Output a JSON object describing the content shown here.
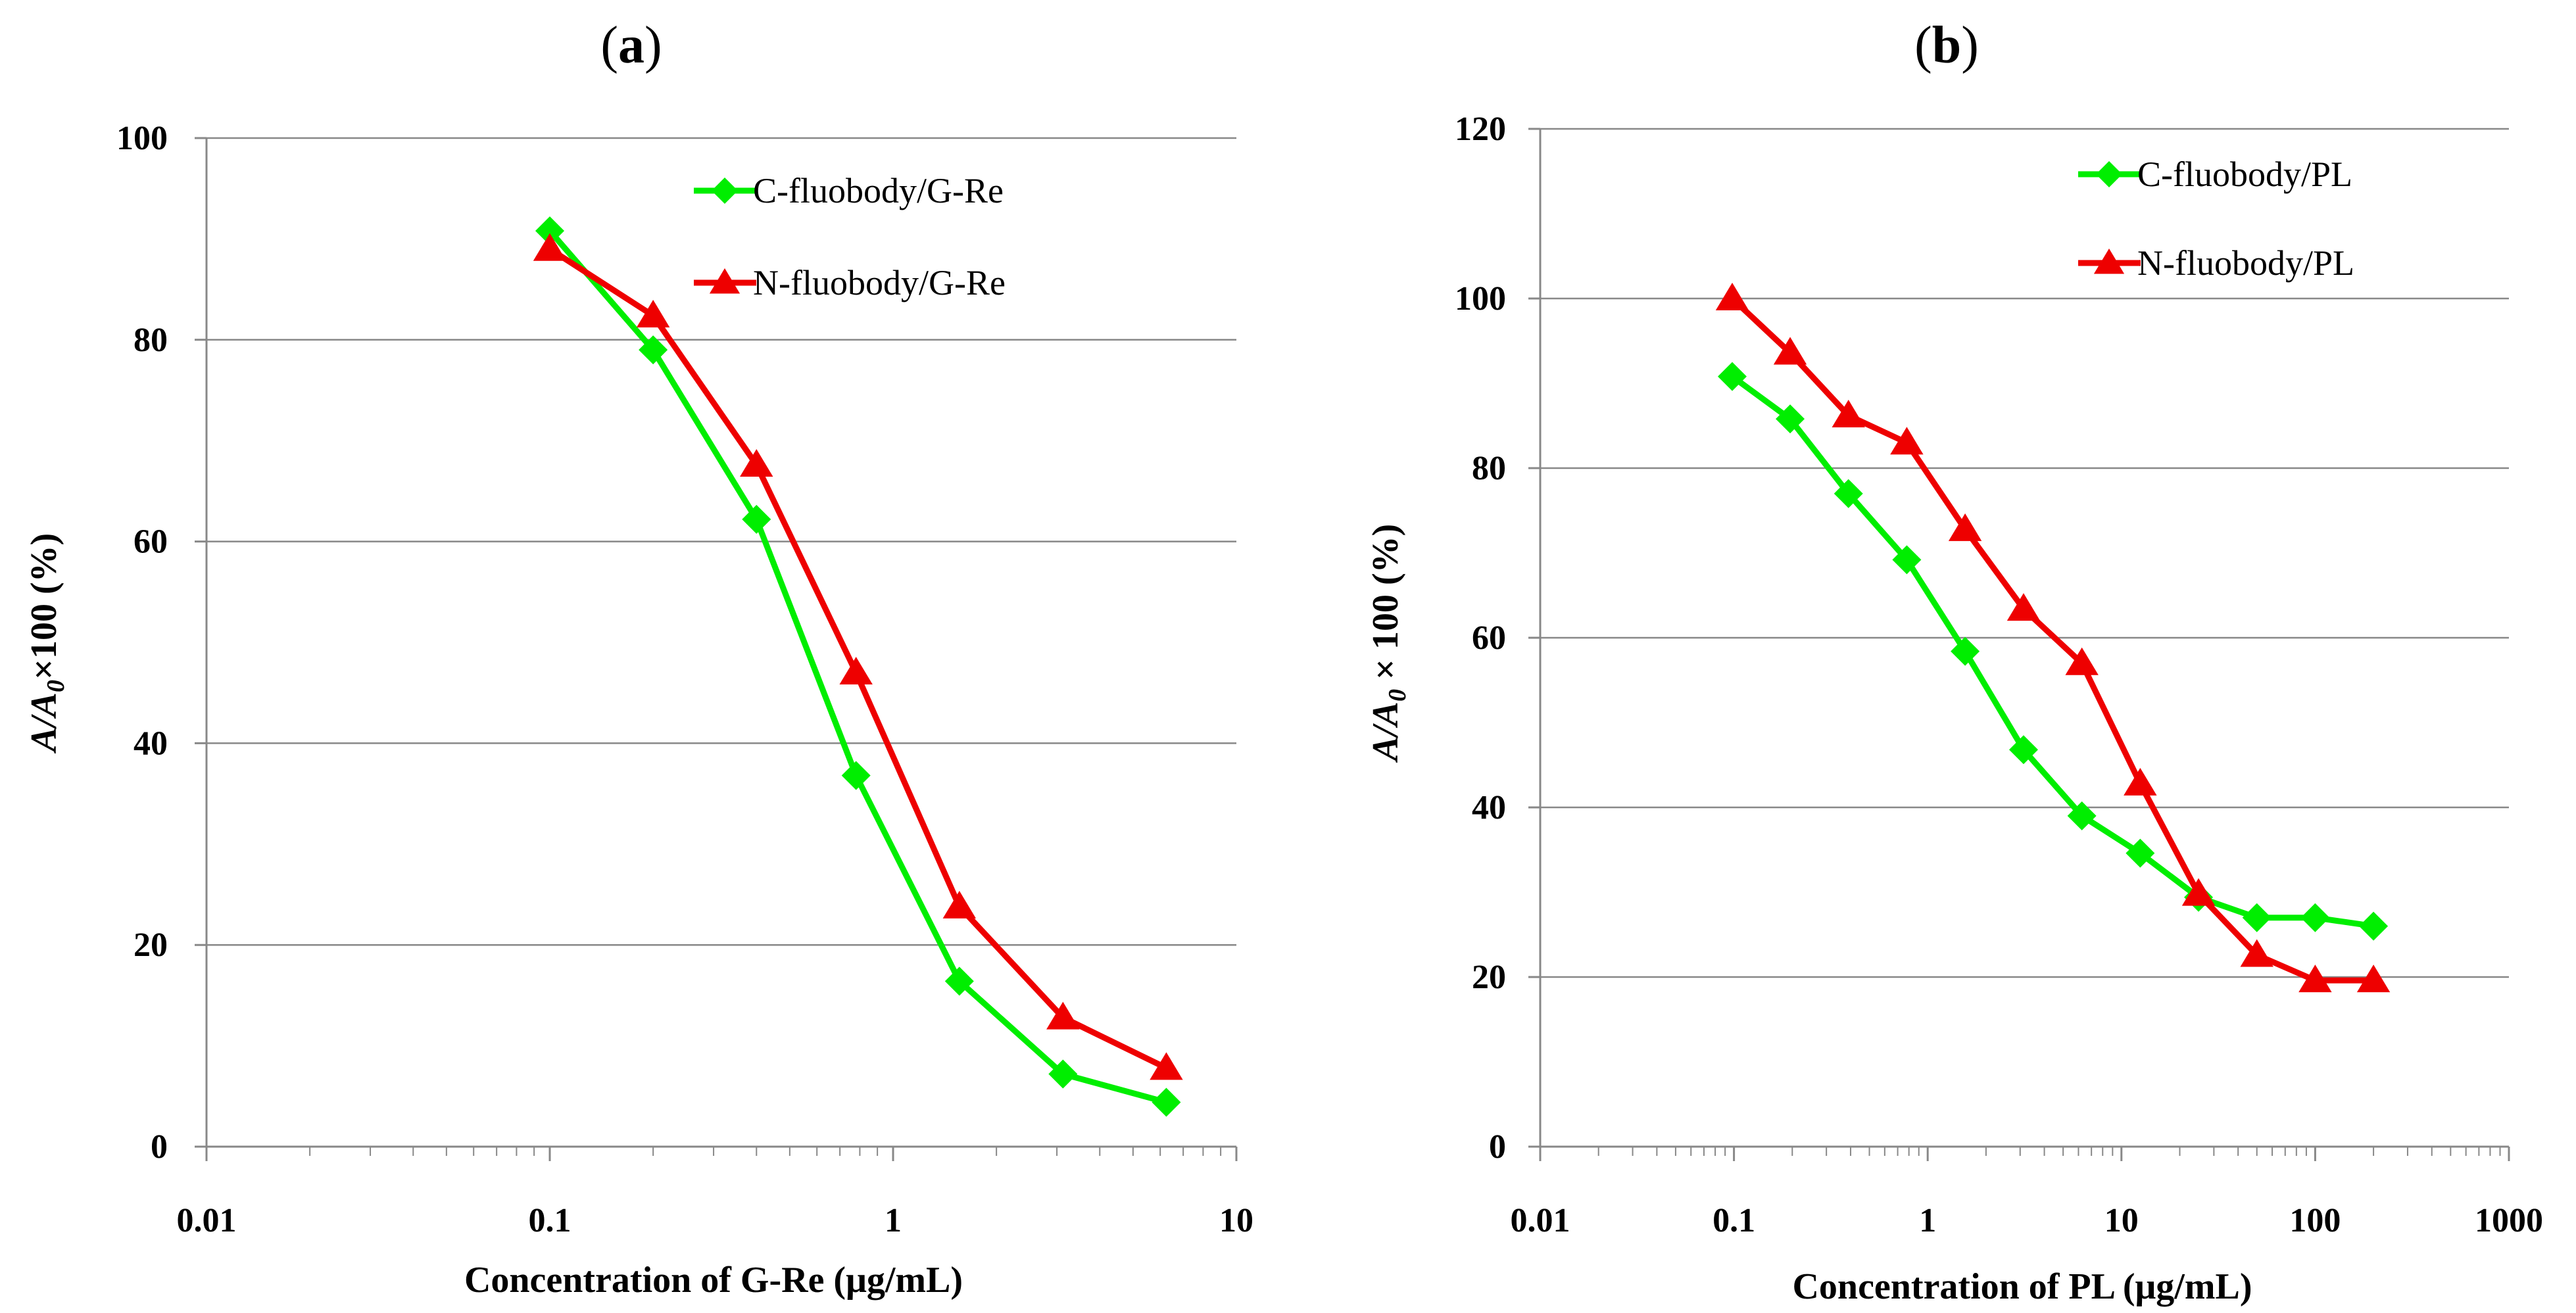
{
  "chart_data": [
    {
      "panel": "a",
      "panel_label": "a",
      "type": "line",
      "xscale": "log",
      "xlim": [
        0.01,
        10
      ],
      "ylim": [
        0,
        100
      ],
      "xticks": [
        0.01,
        0.1,
        1,
        10
      ],
      "xtick_labels": [
        "0.01",
        "0.1",
        "1",
        "10"
      ],
      "yticks": [
        0,
        20,
        40,
        60,
        80,
        100
      ],
      "ytick_labels": [
        "0",
        "20",
        "40",
        "60",
        "80",
        "100"
      ],
      "xlabel": "Concentration of G-Re (μg/mL)",
      "ylabel": "A/A0×100 (%)",
      "ylabel_parts": [
        "A",
        "/",
        "A",
        "0",
        "×100 (%)"
      ],
      "grid": "horizontal",
      "legend_position": "top-right",
      "series": [
        {
          "name": "C-fluobody/G-Re",
          "color": "#00ee00",
          "marker": "diamond",
          "x": [
            0.1,
            0.2,
            0.4,
            0.78,
            1.56,
            3.125,
            6.25
          ],
          "y": [
            90.8,
            79.0,
            62.2,
            36.8,
            16.4,
            7.2,
            4.4
          ]
        },
        {
          "name": "N-fluobody/G-Re",
          "color": "#ee0000",
          "marker": "triangle",
          "x": [
            0.1,
            0.2,
            0.4,
            0.78,
            1.56,
            3.125,
            6.25
          ],
          "y": [
            89.0,
            82.4,
            67.6,
            47.0,
            23.8,
            12.8,
            7.8
          ]
        }
      ]
    },
    {
      "panel": "b",
      "panel_label": "b",
      "type": "line",
      "xscale": "log",
      "xlim": [
        0.01,
        1000
      ],
      "ylim": [
        0,
        120
      ],
      "xticks": [
        0.01,
        0.1,
        1,
        10,
        100,
        1000
      ],
      "xtick_labels": [
        "0.01",
        "0.1",
        "1",
        "10",
        "100",
        "1000"
      ],
      "yticks": [
        0,
        20,
        40,
        60,
        80,
        100,
        120
      ],
      "ytick_labels": [
        "0",
        "20",
        "40",
        "60",
        "80",
        "100",
        "120"
      ],
      "xlabel": "Concentration of PL (μg/mL)",
      "ylabel": "A/A0 × 100 (%)",
      "ylabel_parts": [
        "A",
        "/",
        "A",
        "0",
        " × 100 (%)"
      ],
      "grid": "horizontal",
      "legend_position": "top-right",
      "series": [
        {
          "name": "C-fluobody/PL",
          "color": "#00ee00",
          "marker": "diamond",
          "x": [
            0.098,
            0.195,
            0.39,
            0.78,
            1.56,
            3.125,
            6.25,
            12.5,
            25,
            50,
            100,
            200
          ],
          "y": [
            90.8,
            85.8,
            77.0,
            69.2,
            58.4,
            46.8,
            39.0,
            34.6,
            29.4,
            27.0,
            27.0,
            26.0
          ]
        },
        {
          "name": "N-fluobody/PL",
          "color": "#ee0000",
          "marker": "triangle",
          "x": [
            0.098,
            0.195,
            0.39,
            0.78,
            1.56,
            3.125,
            6.25,
            12.5,
            25,
            50,
            100,
            200
          ],
          "y": [
            100.0,
            93.6,
            86.2,
            83.0,
            72.8,
            63.4,
            57.0,
            42.8,
            29.8,
            22.6,
            19.6,
            19.6
          ]
        }
      ]
    }
  ]
}
